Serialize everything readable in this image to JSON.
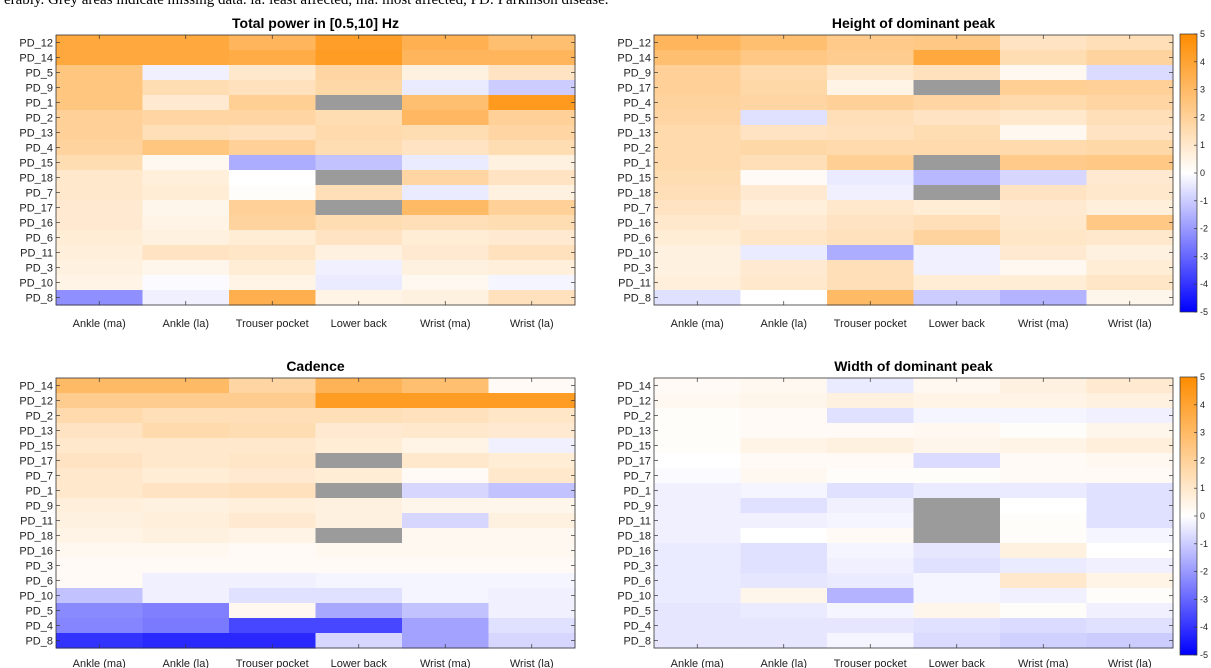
{
  "caption": "erably. Grey areas indicate missing data. la: least affected, ma: most affected, PD: Parkinson disease.",
  "colorbar": {
    "ticks": [
      5,
      4,
      3,
      2,
      1,
      0,
      -1,
      -2,
      -3,
      -4,
      -5
    ],
    "min": -5,
    "max": 5,
    "colors": {
      "positive": "#ff8c00",
      "negative": "#0000ff",
      "zero": "#ffffff",
      "missing": "#9b9b9b"
    }
  },
  "chart_data": [
    {
      "type": "heatmap",
      "title": "Total power in [0.5,10] Hz",
      "columns": [
        "Ankle (ma)",
        "Ankle (la)",
        "Trouser pocket",
        "Lower back",
        "Wrist (ma)",
        "Wrist (la)"
      ],
      "rows": [
        "PD_12",
        "PD_14",
        "PD_5",
        "PD_9",
        "PD_1",
        "PD_2",
        "PD_13",
        "PD_4",
        "PD_15",
        "PD_18",
        "PD_7",
        "PD_17",
        "PD_16",
        "PD_6",
        "PD_11",
        "PD_3",
        "PD_10",
        "PD_8"
      ],
      "values": [
        [
          3.8,
          3.8,
          3.2,
          4.2,
          3.4,
          2.8
        ],
        [
          3.8,
          3.8,
          3.6,
          4.3,
          3.2,
          3.2
        ],
        [
          2.5,
          -0.3,
          1.0,
          1.8,
          0.6,
          1.2
        ],
        [
          2.5,
          1.5,
          1.3,
          1.7,
          -0.4,
          -1.0
        ],
        [
          2.5,
          0.9,
          2.1,
          null,
          2.8,
          4.4
        ],
        [
          2.0,
          1.8,
          1.8,
          1.5,
          3.1,
          2.0
        ],
        [
          2.0,
          1.4,
          1.3,
          1.6,
          1.5,
          1.8
        ],
        [
          1.9,
          2.5,
          2.0,
          1.5,
          1.2,
          1.5
        ],
        [
          1.5,
          0.3,
          -1.6,
          -1.2,
          -0.4,
          0.6
        ],
        [
          1.0,
          0.7,
          0.0,
          null,
          1.8,
          1.2
        ],
        [
          1.0,
          0.8,
          0.1,
          1.4,
          -0.4,
          0.6
        ],
        [
          0.9,
          0.4,
          2.0,
          null,
          3.0,
          2.0
        ],
        [
          0.9,
          0.5,
          1.9,
          1.5,
          1.4,
          1.5
        ],
        [
          0.8,
          0.6,
          0.8,
          1.2,
          0.8,
          0.9
        ],
        [
          0.7,
          1.2,
          1.1,
          0.6,
          0.9,
          1.3
        ],
        [
          0.6,
          0.4,
          0.8,
          -0.3,
          0.6,
          0.7
        ],
        [
          0.5,
          -0.1,
          0.5,
          -0.4,
          0.3,
          -0.2
        ],
        [
          -2.2,
          -0.3,
          3.5,
          0.5,
          0.6,
          1.3
        ]
      ]
    },
    {
      "type": "heatmap",
      "title": "Height of dominant peak",
      "columns": [
        "Ankle (ma)",
        "Ankle (la)",
        "Trouser pocket",
        "Lower back",
        "Wrist (ma)",
        "Wrist (la)"
      ],
      "rows": [
        "PD_12",
        "PD_14",
        "PD_9",
        "PD_17",
        "PD_4",
        "PD_5",
        "PD_13",
        "PD_2",
        "PD_1",
        "PD_15",
        "PD_18",
        "PD_7",
        "PD_16",
        "PD_6",
        "PD_10",
        "PD_3",
        "PD_11",
        "PD_8"
      ],
      "values": [
        [
          3.2,
          2.8,
          2.3,
          2.4,
          1.2,
          1.4
        ],
        [
          2.8,
          2.4,
          2.2,
          3.8,
          1.5,
          1.9
        ],
        [
          2.0,
          1.6,
          1.0,
          1.3,
          0.3,
          -0.7
        ],
        [
          2.0,
          1.7,
          0.5,
          null,
          2.1,
          2.0
        ],
        [
          1.9,
          1.8,
          2.0,
          1.8,
          1.6,
          1.8
        ],
        [
          1.8,
          -0.6,
          1.4,
          1.2,
          1.0,
          1.4
        ],
        [
          1.6,
          1.2,
          1.3,
          1.5,
          0.3,
          1.2
        ],
        [
          1.6,
          1.7,
          1.6,
          1.6,
          1.6,
          1.7
        ],
        [
          1.6,
          1.4,
          2.1,
          null,
          2.3,
          2.4
        ],
        [
          1.5,
          0.2,
          -0.4,
          -1.4,
          -0.8,
          0.9
        ],
        [
          1.4,
          0.9,
          -0.3,
          null,
          1.2,
          1.0
        ],
        [
          1.2,
          0.7,
          1.0,
          0.8,
          0.9,
          0.7
        ],
        [
          1.0,
          0.9,
          1.2,
          1.4,
          1.0,
          2.4
        ],
        [
          0.8,
          1.1,
          1.3,
          1.9,
          1.1,
          1.0
        ],
        [
          0.6,
          -0.4,
          -1.6,
          -0.3,
          0.9,
          0.6
        ],
        [
          0.6,
          0.9,
          1.4,
          -0.3,
          0.3,
          0.8
        ],
        [
          0.7,
          1.0,
          1.4,
          0.8,
          0.8,
          1.1
        ],
        [
          -0.6,
          0.0,
          3.0,
          -1.0,
          -1.5,
          0.4
        ]
      ]
    },
    {
      "type": "heatmap",
      "title": "Cadence",
      "columns": [
        "Ankle (ma)",
        "Ankle (la)",
        "Trouser pocket",
        "Lower back",
        "Wrist (ma)",
        "Wrist (la)"
      ],
      "rows": [
        "PD_14",
        "PD_12",
        "PD_2",
        "PD_13",
        "PD_15",
        "PD_17",
        "PD_7",
        "PD_1",
        "PD_9",
        "PD_11",
        "PD_18",
        "PD_16",
        "PD_3",
        "PD_6",
        "PD_10",
        "PD_5",
        "PD_4",
        "PD_8"
      ],
      "values": [
        [
          3.0,
          3.0,
          1.8,
          3.3,
          2.8,
          0.2
        ],
        [
          2.2,
          2.2,
          2.2,
          4.3,
          4.3,
          4.3
        ],
        [
          1.6,
          1.4,
          1.4,
          1.4,
          1.3,
          1.1
        ],
        [
          1.2,
          1.6,
          1.5,
          0.9,
          1.0,
          0.9
        ],
        [
          1.0,
          1.0,
          1.0,
          0.8,
          0.5,
          -0.3
        ],
        [
          1.2,
          1.0,
          1.1,
          null,
          1.0,
          0.8
        ],
        [
          1.0,
          0.8,
          0.9,
          0.8,
          0.2,
          1.0
        ],
        [
          1.0,
          1.2,
          1.3,
          null,
          -0.8,
          -1.2
        ],
        [
          0.7,
          0.6,
          0.7,
          0.6,
          0.4,
          0.4
        ],
        [
          0.6,
          0.7,
          0.9,
          0.6,
          -0.8,
          0.6
        ],
        [
          0.5,
          0.6,
          0.5,
          null,
          0.3,
          0.3
        ],
        [
          0.3,
          0.3,
          0.2,
          0.3,
          0.3,
          0.3
        ],
        [
          0.2,
          0.2,
          0.2,
          0.2,
          0.2,
          0.2
        ],
        [
          0.2,
          -0.3,
          -0.3,
          -0.2,
          -0.2,
          -0.2
        ],
        [
          -1.2,
          -0.3,
          -0.6,
          -0.6,
          -0.2,
          -0.3
        ],
        [
          -2.3,
          -2.5,
          0.3,
          -1.7,
          -1.2,
          -0.3
        ],
        [
          -2.4,
          -2.6,
          -3.6,
          -3.6,
          -1.8,
          -0.6
        ],
        [
          -4.0,
          -4.2,
          -4.2,
          -0.8,
          -1.8,
          -0.8
        ]
      ]
    },
    {
      "type": "heatmap",
      "title": "Width of dominant peak",
      "columns": [
        "Ankle (ma)",
        "Ankle (la)",
        "Trouser pocket",
        "Lower back",
        "Wrist (ma)",
        "Wrist (la)"
      ],
      "rows": [
        "PD_14",
        "PD_12",
        "PD_2",
        "PD_13",
        "PD_15",
        "PD_17",
        "PD_7",
        "PD_1",
        "PD_9",
        "PD_11",
        "PD_18",
        "PD_16",
        "PD_3",
        "PD_6",
        "PD_10",
        "PD_5",
        "PD_4",
        "PD_8"
      ],
      "values": [
        [
          0.2,
          0.3,
          -0.4,
          0.3,
          0.6,
          0.9
        ],
        [
          0.3,
          0.4,
          0.6,
          0.5,
          0.5,
          0.6
        ],
        [
          0.1,
          0.2,
          -0.6,
          -0.2,
          -0.2,
          -0.3
        ],
        [
          0.1,
          0.2,
          0.2,
          0.3,
          0.1,
          0.4
        ],
        [
          0.1,
          0.5,
          0.6,
          0.4,
          0.5,
          0.7
        ],
        [
          0.0,
          0.2,
          0.2,
          -0.7,
          0.2,
          0.3
        ],
        [
          -0.1,
          0.3,
          0.1,
          0.1,
          0.2,
          0.2
        ],
        [
          -0.3,
          -0.2,
          -0.6,
          -0.4,
          -0.4,
          -0.6
        ],
        [
          -0.3,
          -0.6,
          -0.3,
          null,
          0.0,
          -0.6
        ],
        [
          -0.3,
          -0.3,
          -0.2,
          null,
          0.1,
          -0.6
        ],
        [
          -0.3,
          0.0,
          0.2,
          null,
          0.1,
          -0.2
        ],
        [
          -0.4,
          -0.6,
          -0.2,
          -0.5,
          0.6,
          0.0
        ],
        [
          -0.4,
          -0.6,
          -0.3,
          -0.6,
          -0.4,
          -0.3
        ],
        [
          -0.4,
          -0.5,
          -0.4,
          -0.2,
          1.0,
          0.5
        ],
        [
          -0.4,
          0.4,
          -1.5,
          -0.2,
          -0.3,
          0.1
        ],
        [
          -0.5,
          -0.4,
          -0.2,
          0.4,
          0.1,
          -0.3
        ],
        [
          -0.5,
          -0.5,
          -0.5,
          -0.6,
          -0.7,
          -0.6
        ],
        [
          -0.5,
          -0.5,
          -0.2,
          -0.7,
          -0.9,
          -1.0
        ]
      ]
    }
  ]
}
